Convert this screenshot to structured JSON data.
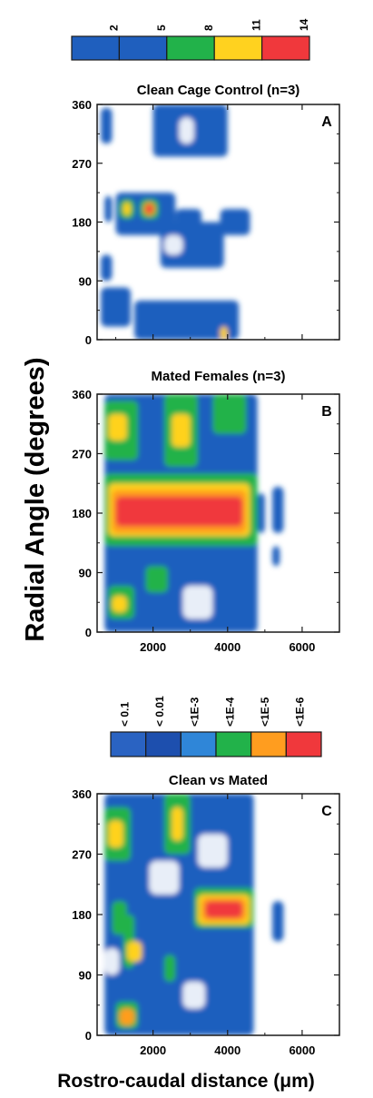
{
  "chart_data": [
    {
      "panel": "A",
      "type": "heatmap",
      "title": "Clean Cage Control (n=3)",
      "letter": "A",
      "xlim": [
        500,
        7000
      ],
      "ylim": [
        0,
        360
      ],
      "yticks": [
        "0",
        "90",
        "180",
        "270",
        "360"
      ],
      "xticks": [
        2000,
        4000,
        6000
      ],
      "xticklabels": [
        "",
        "",
        ""
      ],
      "colorbar": {
        "labels": [
          "2",
          "5",
          "8",
          "11",
          "14"
        ],
        "colors": [
          "#1f5fbe",
          "#1f5fbe",
          "#22b24a",
          "#ffd21f",
          "#f0383c"
        ]
      },
      "blobs": [
        {
          "x": [
            600,
            900
          ],
          "y": [
            300,
            355
          ],
          "level": 1
        },
        {
          "x": [
            700,
            900
          ],
          "y": [
            180,
            220
          ],
          "level": 1
        },
        {
          "x": [
            1000,
            2600
          ],
          "y": [
            160,
            225
          ],
          "level": 1
        },
        {
          "x": [
            1100,
            1500
          ],
          "y": [
            185,
            215
          ],
          "level": 2
        },
        {
          "x": [
            1200,
            1400
          ],
          "y": [
            190,
            210
          ],
          "level": 3
        },
        {
          "x": [
            1650,
            2150
          ],
          "y": [
            185,
            215
          ],
          "level": 2
        },
        {
          "x": [
            1750,
            2050
          ],
          "y": [
            190,
            210
          ],
          "level": 4
        },
        {
          "x": [
            1800,
            2000
          ],
          "y": [
            193,
            207
          ],
          "level": 5
        },
        {
          "x": [
            2000,
            4000
          ],
          "y": [
            280,
            360
          ],
          "level": 1
        },
        {
          "x": [
            2600,
            3300
          ],
          "y": [
            170,
            200
          ],
          "level": 1
        },
        {
          "x": [
            2200,
            3900
          ],
          "y": [
            110,
            180
          ],
          "level": 1
        },
        {
          "x": [
            3800,
            4600
          ],
          "y": [
            160,
            200
          ],
          "level": 1
        },
        {
          "x": [
            600,
            900
          ],
          "y": [
            90,
            130
          ],
          "level": 1
        },
        {
          "x": [
            600,
            1400
          ],
          "y": [
            20,
            80
          ],
          "level": 1
        },
        {
          "x": [
            1500,
            4300
          ],
          "y": [
            0,
            60
          ],
          "level": 1
        },
        {
          "x": [
            3800,
            4000
          ],
          "y": [
            0,
            20
          ],
          "level": 3
        }
      ],
      "holes": [
        {
          "x": [
            2700,
            3100
          ],
          "y": [
            300,
            340
          ]
        },
        {
          "x": [
            2300,
            2800
          ],
          "y": [
            130,
            160
          ]
        }
      ]
    },
    {
      "panel": "B",
      "type": "heatmap",
      "title": "Mated Females (n=3)",
      "letter": "B",
      "xlim": [
        500,
        7000
      ],
      "ylim": [
        0,
        360
      ],
      "yticks": [
        "0",
        "90",
        "180",
        "270",
        "360"
      ],
      "xticks": [
        2000,
        4000,
        6000
      ],
      "xticklabels": [
        "2000",
        "4000",
        "6000"
      ],
      "blobs": [
        {
          "x": [
            700,
            4800
          ],
          "y": [
            0,
            360
          ],
          "level": 1
        },
        {
          "x": [
            4800,
            5000
          ],
          "y": [
            150,
            210
          ],
          "level": 1
        },
        {
          "x": [
            5200,
            5500
          ],
          "y": [
            150,
            220
          ],
          "level": 1
        },
        {
          "x": [
            5200,
            5400
          ],
          "y": [
            100,
            130
          ],
          "level": 1
        },
        {
          "x": [
            700,
            1600
          ],
          "y": [
            260,
            350
          ],
          "level": 2
        },
        {
          "x": [
            800,
            1300
          ],
          "y": [
            290,
            330
          ],
          "level": 3
        },
        {
          "x": [
            2300,
            3200
          ],
          "y": [
            250,
            360
          ],
          "level": 2
        },
        {
          "x": [
            2500,
            3000
          ],
          "y": [
            280,
            330
          ],
          "level": 3
        },
        {
          "x": [
            3600,
            4500
          ],
          "y": [
            300,
            360
          ],
          "level": 2
        },
        {
          "x": [
            700,
            4800
          ],
          "y": [
            130,
            240
          ],
          "level": 2
        },
        {
          "x": [
            800,
            4600
          ],
          "y": [
            145,
            225
          ],
          "level": 3
        },
        {
          "x": [
            900,
            4500
          ],
          "y": [
            150,
            215
          ],
          "level": 4
        },
        {
          "x": [
            1000,
            4400
          ],
          "y": [
            160,
            205
          ],
          "level": 5
        },
        {
          "x": [
            800,
            1500
          ],
          "y": [
            20,
            70
          ],
          "level": 2
        },
        {
          "x": [
            900,
            1300
          ],
          "y": [
            30,
            55
          ],
          "level": 3
        },
        {
          "x": [
            1800,
            2400
          ],
          "y": [
            60,
            100
          ],
          "level": 2
        }
      ],
      "holes": [
        {
          "x": [
            2800,
            3600
          ],
          "y": [
            20,
            70
          ]
        }
      ]
    },
    {
      "panel": "C",
      "type": "heatmap",
      "title": "Clean vs Mated",
      "letter": "C",
      "xlim": [
        500,
        7000
      ],
      "ylim": [
        0,
        360
      ],
      "yticks": [
        "0",
        "90",
        "180",
        "270",
        "360"
      ],
      "xticks": [
        2000,
        4000,
        6000
      ],
      "xticklabels": [
        "2000",
        "4000",
        "6000"
      ],
      "colorbar": {
        "labels": [
          "< 0.1",
          "< 0.01",
          "<1E-3",
          "<1E-4",
          "<1E-5",
          "<1E-6"
        ],
        "colors": [
          "#2a63c2",
          "#1d4fae",
          "#2f86d8",
          "#22b24a",
          "#ff9d1f",
          "#f0383c"
        ]
      },
      "blobs": [
        {
          "x": [
            700,
            4700
          ],
          "y": [
            0,
            360
          ],
          "level": 1
        },
        {
          "x": [
            5200,
            5500
          ],
          "y": [
            140,
            200
          ],
          "level": 1
        },
        {
          "x": [
            700,
            1400
          ],
          "y": [
            260,
            340
          ],
          "level": 2
        },
        {
          "x": [
            800,
            1200
          ],
          "y": [
            280,
            320
          ],
          "level": 3
        },
        {
          "x": [
            2300,
            3000
          ],
          "y": [
            270,
            360
          ],
          "level": 2
        },
        {
          "x": [
            2500,
            2800
          ],
          "y": [
            290,
            340
          ],
          "level": 3
        },
        {
          "x": [
            3100,
            4700
          ],
          "y": [
            160,
            220
          ],
          "level": 2
        },
        {
          "x": [
            3200,
            4600
          ],
          "y": [
            165,
            210
          ],
          "level": 3
        },
        {
          "x": [
            3300,
            4500
          ],
          "y": [
            170,
            205
          ],
          "level": 4
        },
        {
          "x": [
            3400,
            4400
          ],
          "y": [
            175,
            200
          ],
          "level": 5
        },
        {
          "x": [
            900,
            1300
          ],
          "y": [
            150,
            200
          ],
          "level": 2
        },
        {
          "x": [
            1200,
            1500
          ],
          "y": [
            100,
            180
          ],
          "level": 2
        },
        {
          "x": [
            1300,
            1700
          ],
          "y": [
            110,
            140
          ],
          "level": 3
        },
        {
          "x": [
            1000,
            1600
          ],
          "y": [
            10,
            50
          ],
          "level": 2
        },
        {
          "x": [
            1100,
            1500
          ],
          "y": [
            15,
            40
          ],
          "level": 4
        },
        {
          "x": [
            2300,
            2600
          ],
          "y": [
            80,
            120
          ],
          "level": 2
        }
      ],
      "holes": [
        {
          "x": [
            1900,
            2700
          ],
          "y": [
            210,
            260
          ]
        },
        {
          "x": [
            3200,
            4000
          ],
          "y": [
            250,
            300
          ]
        },
        {
          "x": [
            700,
            1100
          ],
          "y": [
            90,
            130
          ]
        },
        {
          "x": [
            2800,
            3400
          ],
          "y": [
            40,
            80
          ]
        }
      ]
    }
  ],
  "labels": {
    "ylabel": "Radial Angle (degrees)",
    "xlabel": "Rostro-caudal distance (μm)"
  },
  "colors": {
    "level1": "#1f5fbe",
    "level2": "#22b24a",
    "level3": "#ffd21f",
    "level4": "#ff9d1f",
    "level5": "#f0383c"
  }
}
